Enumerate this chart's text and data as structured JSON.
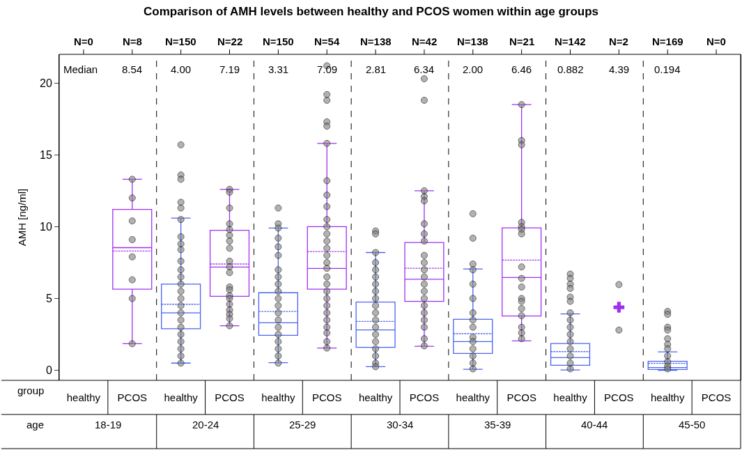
{
  "chart_data": {
    "type": "box",
    "title": "Comparison of AMH levels between healthy and PCOS women within age groups",
    "ylabel": "AMH [ng/ml]",
    "xlabel": "group",
    "categories": [
      "healthy",
      "PCOS",
      "healthy",
      "PCOS",
      "healthy",
      "PCOS",
      "healthy",
      "PCOS",
      "healthy",
      "PCOS",
      "healthy",
      "PCOS",
      "healthy",
      "PCOS"
    ],
    "colors": [
      "#4a63f0",
      "#a030f0",
      "#4a63f0",
      "#a030f0",
      "#4a63f0",
      "#a030f0",
      "#4a63f0",
      "#a030f0",
      "#4a63f0",
      "#a030f0",
      "#4a63f0",
      "#a030f0",
      "#4a63f0",
      "#a030f0"
    ],
    "boxes": [
      null,
      {
        "low": 1.85,
        "q1": 5.65,
        "median": 8.54,
        "q3": 11.2,
        "high": 13.3,
        "mean": 8.3
      },
      {
        "low": 0.5,
        "q1": 2.9,
        "median": 4.0,
        "q3": 6.0,
        "high": 10.6,
        "mean": 4.6
      },
      {
        "low": 3.1,
        "q1": 5.15,
        "median": 7.19,
        "q3": 9.75,
        "high": 12.6,
        "mean": 7.4
      },
      {
        "low": 0.53,
        "q1": 2.43,
        "median": 3.31,
        "q3": 5.4,
        "high": 9.9,
        "mean": 4.1
      },
      {
        "low": 1.55,
        "q1": 5.65,
        "median": 7.09,
        "q3": 10.0,
        "high": 15.8,
        "mean": 8.27
      },
      {
        "low": 0.25,
        "q1": 1.6,
        "median": 2.81,
        "q3": 4.75,
        "high": 8.2,
        "mean": 3.4
      },
      {
        "low": 1.67,
        "q1": 4.8,
        "median": 6.34,
        "q3": 8.9,
        "high": 12.5,
        "mean": 7.1
      },
      {
        "low": 0.07,
        "q1": 1.17,
        "median": 2.0,
        "q3": 3.55,
        "high": 7.05,
        "mean": 2.55
      },
      {
        "low": 2.05,
        "q1": 3.78,
        "median": 6.46,
        "q3": 9.92,
        "high": 18.5,
        "mean": 7.67
      },
      {
        "low": 0.02,
        "q1": 0.35,
        "median": 0.882,
        "q3": 1.86,
        "high": 3.93,
        "mean": 1.3
      },
      null,
      {
        "low": 0.0,
        "q1": 0.06,
        "median": 0.194,
        "q3": 0.63,
        "high": 1.28,
        "mean": 0.48
      },
      null
    ],
    "annotations": [
      "N=0",
      "N=8",
      "N=150",
      "N=22",
      "N=150",
      "N=54",
      "N=138",
      "N=42",
      "N=138",
      "N=21",
      "N=142",
      "N=2",
      "N=169",
      "N=0",
      "Median",
      "8.54",
      "4.00",
      "7.19",
      "3.31",
      "7.09",
      "2.81",
      "6.34",
      "2.00",
      "6.46",
      "0.882",
      "4.39",
      "0.194",
      "age",
      "18-19",
      "20-24",
      "25-29",
      "30-34",
      "35-39",
      "40-44",
      "45-50"
    ],
    "series": [
      {
        "type": "scatter",
        "color": "#808080",
        "values": [
          null,
          13.3,
          15.7,
          12.6,
          11.3,
          21.2,
          9.7,
          20.3,
          10.9,
          18.5,
          6.7,
          5.97,
          4.1,
          null
        ]
      },
      {
        "type": "scatter",
        "color": "#808080",
        "values": [
          null,
          12.0,
          13.6,
          12.4,
          10.2,
          19.2,
          9.5,
          18.8,
          null,
          16.0,
          6.4,
          2.8,
          3.9,
          null
        ]
      },
      {
        "type": "scatter",
        "color": "#808080",
        "values": [
          null,
          10.4,
          13.3,
          11.3,
          9.9,
          18.8,
          8.2,
          12.5,
          9.2,
          15.7,
          6.0,
          null,
          3.0,
          null
        ]
      },
      {
        "type": "scatter",
        "color": "#808080",
        "values": [
          null,
          9.1,
          11.7,
          10.2,
          9.2,
          17.3,
          7.5,
          12.1,
          7.4,
          null,
          5.7,
          null,
          2.8,
          null
        ]
      },
      {
        "type": "scatter",
        "color": "#808080",
        "values": [
          null,
          7.9,
          11.3,
          9.8,
          8.6,
          17.0,
          7.0,
          11.8,
          7.0,
          10.3,
          5.1,
          null,
          2.2,
          null
        ]
      },
      {
        "type": "scatter",
        "color": "#808080",
        "values": [
          null,
          6.3,
          10.5,
          9.4,
          8.0,
          15.8,
          6.5,
          10.2,
          6.0,
          10.0,
          4.8,
          null,
          1.8,
          null
        ]
      },
      {
        "type": "scatter",
        "color": "#808080",
        "values": [
          null,
          5.0,
          9.3,
          9.0,
          7.0,
          13.2,
          6.0,
          9.5,
          5.0,
          9.8,
          4.0,
          null,
          1.5,
          null
        ]
      },
      {
        "type": "scatter",
        "color": "#808080",
        "values": [
          null,
          1.85,
          8.8,
          8.5,
          6.5,
          12.2,
          5.5,
          9.0,
          4.0,
          9.5,
          3.5,
          null,
          1.0,
          null
        ]
      },
      {
        "type": "scatter",
        "color": "#808080",
        "values": [
          null,
          null,
          8.4,
          7.6,
          6.0,
          11.4,
          5.0,
          8.0,
          3.5,
          7.2,
          3.0,
          null,
          0.6,
          null
        ]
      },
      {
        "type": "scatter",
        "color": "#808080",
        "values": [
          null,
          null,
          7.6,
          7.2,
          5.5,
          10.5,
          4.5,
          7.5,
          3.0,
          6.4,
          2.5,
          null,
          0.3,
          null
        ]
      },
      {
        "type": "scatter",
        "color": "#808080",
        "values": [
          null,
          null,
          7.0,
          6.8,
          5.0,
          10.0,
          4.0,
          7.0,
          2.3,
          5.8,
          2.0,
          null,
          0.1,
          null
        ]
      },
      {
        "type": "scatter",
        "color": "#a030f0",
        "marker": "cross",
        "values": [
          null,
          null,
          null,
          null,
          null,
          null,
          null,
          null,
          null,
          null,
          null,
          4.39,
          null,
          null
        ]
      },
      {
        "type": "scatter",
        "color": "#808080",
        "values": [
          null,
          null,
          6.5,
          5.8,
          4.5,
          9.5,
          3.5,
          6.5,
          2.0,
          5.0,
          1.5,
          null,
          null,
          null
        ]
      },
      {
        "type": "scatter",
        "color": "#808080",
        "values": [
          null,
          null,
          6.0,
          5.6,
          4.0,
          9.0,
          3.0,
          6.0,
          1.5,
          4.8,
          1.0,
          null,
          null,
          null
        ]
      },
      {
        "type": "scatter",
        "color": "#808080",
        "values": [
          null,
          null,
          5.5,
          5.2,
          3.5,
          8.5,
          2.5,
          5.5,
          1.0,
          4.3,
          0.5,
          null,
          null,
          null
        ]
      },
      {
        "type": "scatter",
        "color": "#808080",
        "values": [
          null,
          null,
          5.0,
          5.0,
          3.0,
          8.0,
          2.0,
          5.0,
          0.5,
          3.8,
          0.1,
          null,
          null,
          null
        ]
      },
      {
        "type": "scatter",
        "color": "#808080",
        "values": [
          null,
          null,
          4.5,
          4.6,
          2.5,
          7.5,
          1.5,
          4.5,
          0.1,
          3.0,
          null,
          null,
          null,
          null
        ]
      },
      {
        "type": "scatter",
        "color": "#808080",
        "values": [
          null,
          null,
          4.0,
          4.2,
          2.0,
          7.1,
          1.0,
          4.0,
          null,
          2.6,
          null,
          null,
          null,
          null
        ]
      },
      {
        "type": "scatter",
        "color": "#808080",
        "values": [
          null,
          null,
          3.5,
          3.9,
          1.5,
          6.5,
          0.5,
          3.5,
          null,
          2.2,
          null,
          null,
          null,
          null
        ]
      },
      {
        "type": "scatter",
        "color": "#808080",
        "values": [
          null,
          null,
          3.0,
          3.6,
          1.0,
          6.0,
          0.25,
          3.0,
          null,
          null,
          null,
          null,
          null,
          null
        ]
      },
      {
        "type": "scatter",
        "color": "#808080",
        "values": [
          null,
          null,
          2.5,
          3.1,
          0.5,
          5.5,
          null,
          2.2,
          null,
          null,
          null,
          null,
          null,
          null
        ]
      },
      {
        "type": "scatter",
        "color": "#808080",
        "values": [
          null,
          null,
          2.0,
          null,
          null,
          5.0,
          null,
          1.7,
          null,
          null,
          null,
          null,
          null,
          null
        ]
      },
      {
        "type": "scatter",
        "color": "#808080",
        "values": [
          null,
          null,
          1.5,
          null,
          null,
          4.5,
          null,
          null,
          null,
          null,
          null,
          null,
          null,
          null
        ]
      },
      {
        "type": "scatter",
        "color": "#808080",
        "values": [
          null,
          null,
          1.0,
          null,
          null,
          4.0,
          null,
          null,
          null,
          null,
          null,
          null,
          null,
          null
        ]
      },
      {
        "type": "scatter",
        "color": "#808080",
        "values": [
          null,
          null,
          0.5,
          null,
          null,
          3.5,
          null,
          null,
          null,
          null,
          null,
          null,
          null,
          null
        ]
      },
      {
        "type": "scatter",
        "color": "#808080",
        "values": [
          null,
          null,
          null,
          null,
          null,
          3.0,
          null,
          null,
          null,
          null,
          null,
          null,
          null,
          null
        ]
      },
      {
        "type": "scatter",
        "color": "#808080",
        "values": [
          null,
          null,
          null,
          null,
          null,
          2.6,
          null,
          null,
          null,
          null,
          null,
          null,
          null,
          null
        ]
      },
      {
        "type": "scatter",
        "color": "#808080",
        "values": [
          null,
          null,
          null,
          null,
          null,
          2.0,
          null,
          null,
          null,
          null,
          null,
          null,
          null,
          null
        ]
      },
      {
        "type": "scatter",
        "color": "#808080",
        "values": [
          null,
          null,
          null,
          null,
          null,
          1.55,
          null,
          null,
          null,
          null,
          null,
          null,
          null,
          null
        ]
      }
    ],
    "ylim": [
      -0.7,
      22
    ],
    "yticks": [
      0,
      5,
      10,
      15,
      20
    ]
  }
}
